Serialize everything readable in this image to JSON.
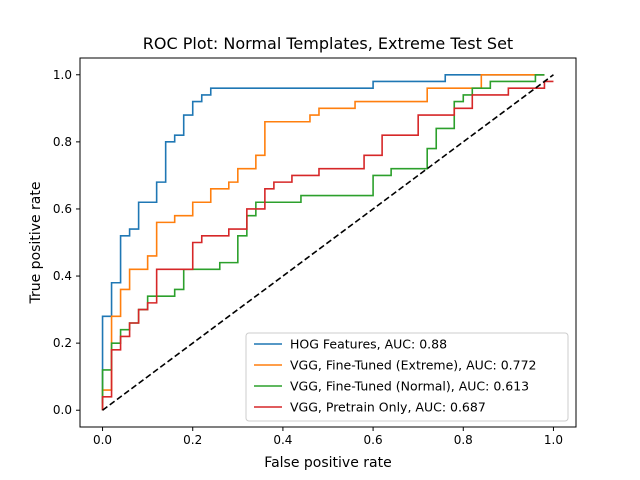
{
  "chart_data": {
    "type": "line",
    "title": "ROC Plot: Normal Templates, Extreme Test Set",
    "xlabel": "False positive rate",
    "ylabel": "True positive rate",
    "xlim": [
      -0.05,
      1.05
    ],
    "ylim": [
      -0.05,
      1.05
    ],
    "xticks": [
      "0.0",
      "0.2",
      "0.4",
      "0.6",
      "0.8",
      "1.0"
    ],
    "yticks": [
      "0.0",
      "0.2",
      "0.4",
      "0.6",
      "0.8",
      "1.0"
    ],
    "grid": false,
    "legend_position": "lower-right",
    "series": [
      {
        "name": "HOG Features, AUC: 0.88",
        "color": "#1f77b4",
        "x": [
          0,
          0,
          0.02,
          0.02,
          0.04,
          0.04,
          0.06,
          0.06,
          0.08,
          0.08,
          0.12,
          0.12,
          0.14,
          0.14,
          0.16,
          0.16,
          0.18,
          0.18,
          0.2,
          0.2,
          0.22,
          0.22,
          0.24,
          0.24,
          0.28,
          0.28,
          0.6,
          0.6,
          0.76,
          0.76,
          0.98
        ],
        "y": [
          0,
          0.28,
          0.28,
          0.38,
          0.38,
          0.52,
          0.52,
          0.54,
          0.54,
          0.62,
          0.62,
          0.68,
          0.68,
          0.8,
          0.8,
          0.82,
          0.82,
          0.88,
          0.88,
          0.92,
          0.92,
          0.94,
          0.94,
          0.96,
          0.96,
          0.96,
          0.96,
          0.98,
          0.98,
          1.0,
          1.0
        ]
      },
      {
        "name": "VGG, Fine-Tuned (Extreme), AUC: 0.772",
        "color": "#ff7f0e",
        "x": [
          0,
          0,
          0.02,
          0.02,
          0.04,
          0.04,
          0.06,
          0.06,
          0.1,
          0.1,
          0.12,
          0.12,
          0.16,
          0.16,
          0.2,
          0.2,
          0.24,
          0.24,
          0.28,
          0.28,
          0.3,
          0.3,
          0.34,
          0.34,
          0.36,
          0.36,
          0.46,
          0.46,
          0.48,
          0.48,
          0.56,
          0.56,
          0.72,
          0.72,
          0.84,
          0.84,
          0.98
        ],
        "y": [
          0,
          0.06,
          0.06,
          0.28,
          0.28,
          0.36,
          0.36,
          0.42,
          0.42,
          0.46,
          0.46,
          0.56,
          0.56,
          0.58,
          0.58,
          0.62,
          0.62,
          0.66,
          0.66,
          0.68,
          0.68,
          0.72,
          0.72,
          0.76,
          0.76,
          0.86,
          0.86,
          0.88,
          0.88,
          0.9,
          0.9,
          0.92,
          0.92,
          0.96,
          0.96,
          1.0,
          1.0
        ]
      },
      {
        "name": "VGG, Fine-Tuned (Normal), AUC: 0.613",
        "color": "#2ca02c",
        "x": [
          0,
          0,
          0.02,
          0.02,
          0.04,
          0.04,
          0.06,
          0.06,
          0.08,
          0.08,
          0.1,
          0.1,
          0.16,
          0.16,
          0.18,
          0.18,
          0.26,
          0.26,
          0.3,
          0.3,
          0.32,
          0.32,
          0.34,
          0.34,
          0.44,
          0.44,
          0.6,
          0.6,
          0.64,
          0.64,
          0.72,
          0.72,
          0.74,
          0.74,
          0.78,
          0.78,
          0.8,
          0.8,
          0.82,
          0.82,
          0.86,
          0.86,
          0.96,
          0.96,
          0.98
        ],
        "y": [
          0.02,
          0.12,
          0.12,
          0.2,
          0.2,
          0.24,
          0.24,
          0.26,
          0.26,
          0.3,
          0.3,
          0.34,
          0.34,
          0.36,
          0.36,
          0.42,
          0.42,
          0.44,
          0.44,
          0.52,
          0.52,
          0.58,
          0.58,
          0.62,
          0.62,
          0.64,
          0.64,
          0.7,
          0.7,
          0.72,
          0.72,
          0.78,
          0.78,
          0.84,
          0.84,
          0.92,
          0.92,
          0.94,
          0.94,
          0.96,
          0.96,
          0.98,
          0.98,
          1.0,
          1.0
        ]
      },
      {
        "name": "VGG, Pretrain Only, AUC: 0.687",
        "color": "#d62728",
        "x": [
          0,
          0,
          0.02,
          0.02,
          0.04,
          0.04,
          0.06,
          0.06,
          0.08,
          0.08,
          0.1,
          0.1,
          0.12,
          0.12,
          0.2,
          0.2,
          0.22,
          0.22,
          0.28,
          0.28,
          0.32,
          0.32,
          0.36,
          0.36,
          0.38,
          0.38,
          0.42,
          0.42,
          0.48,
          0.48,
          0.58,
          0.58,
          0.62,
          0.62,
          0.7,
          0.7,
          0.78,
          0.78,
          0.82,
          0.82,
          0.9,
          0.9,
          0.98,
          0.98,
          1.0
        ],
        "y": [
          0,
          0.04,
          0.04,
          0.18,
          0.18,
          0.22,
          0.22,
          0.26,
          0.26,
          0.3,
          0.3,
          0.32,
          0.32,
          0.42,
          0.42,
          0.5,
          0.5,
          0.52,
          0.52,
          0.54,
          0.54,
          0.6,
          0.6,
          0.66,
          0.66,
          0.68,
          0.68,
          0.7,
          0.7,
          0.72,
          0.72,
          0.76,
          0.76,
          0.82,
          0.82,
          0.88,
          0.88,
          0.9,
          0.9,
          0.94,
          0.94,
          0.96,
          0.96,
          0.98,
          0.98
        ]
      }
    ],
    "reference_line": {
      "x": [
        0,
        1
      ],
      "y": [
        0,
        1
      ],
      "color": "#000000",
      "style": "dashed"
    }
  }
}
